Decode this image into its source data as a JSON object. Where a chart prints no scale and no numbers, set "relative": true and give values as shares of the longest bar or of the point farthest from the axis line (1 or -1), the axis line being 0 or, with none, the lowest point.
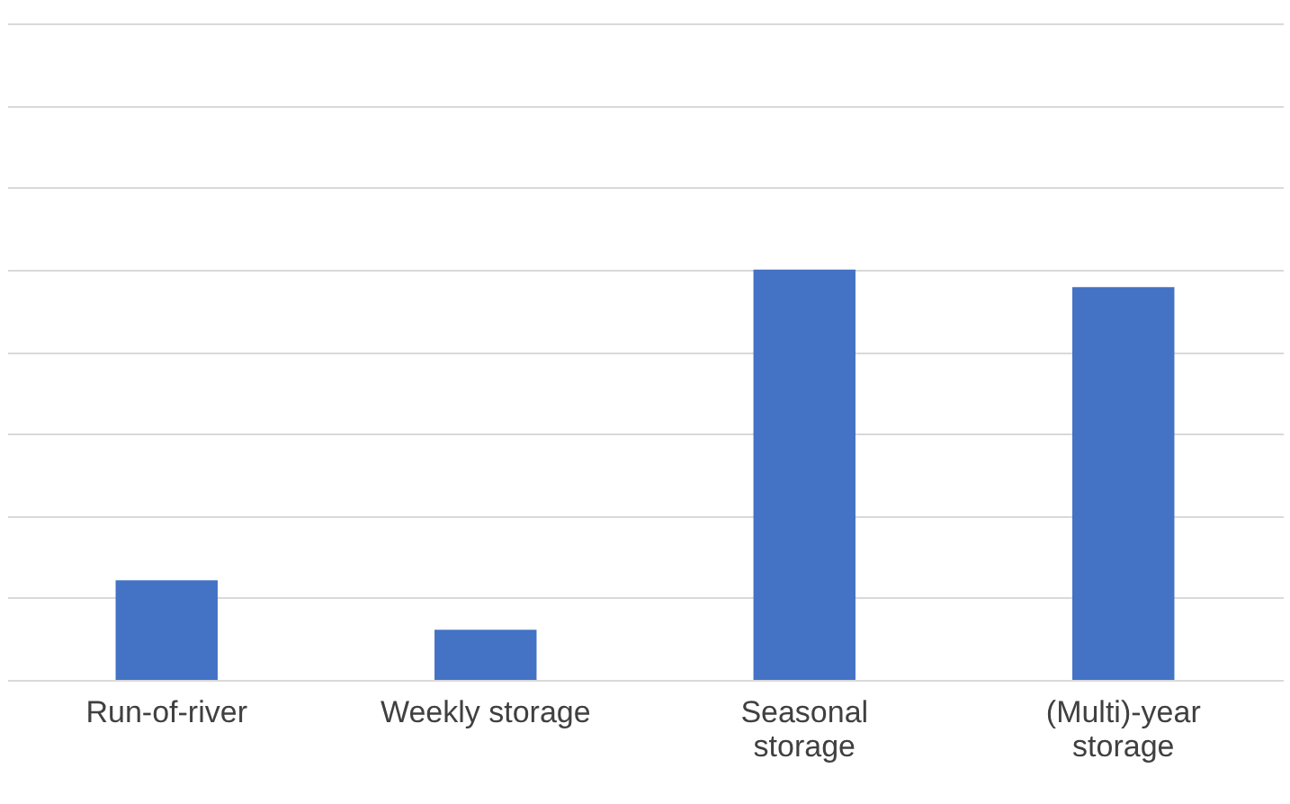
{
  "chart_data": {
    "type": "bar",
    "relative": true,
    "categories": [
      "Run-of-river",
      "Weekly storage",
      "Seasonal storage",
      "(Multi)-year storage"
    ],
    "values": [
      0.243,
      0.122,
      1,
      0.957
    ],
    "color": "#4472c4",
    "grid": "y"
  }
}
